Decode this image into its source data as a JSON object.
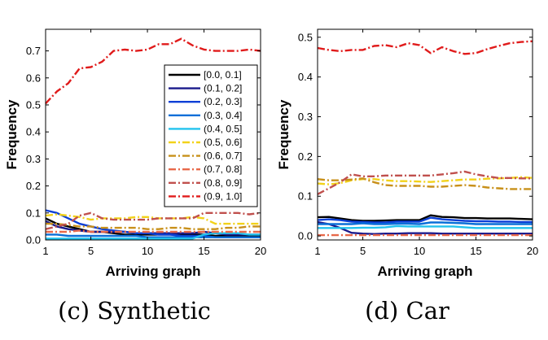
{
  "chart_data": [
    {
      "type": "line",
      "caption": "(c) Synthetic",
      "xlabel": "Arriving graph",
      "ylabel": "Frequency",
      "xlim": [
        1,
        20
      ],
      "ylim": [
        0,
        0.78
      ],
      "xticks": [
        1,
        5,
        10,
        15,
        20
      ],
      "yticks": [
        0,
        0.1,
        0.2,
        0.3,
        0.4,
        0.5,
        0.6,
        0.7
      ],
      "yticklabels": [
        "0.0",
        "0.1",
        "0.2",
        "0.3",
        "0.4",
        "0.5",
        "0.6",
        "0.7"
      ],
      "grid": false,
      "legend": "top-right",
      "x": [
        1,
        2,
        3,
        4,
        5,
        6,
        7,
        8,
        9,
        10,
        11,
        12,
        13,
        14,
        15,
        16,
        17,
        18,
        19,
        20
      ],
      "series": [
        {
          "name": "[0.0, 0.1]",
          "color": "#000000",
          "dash": "solid",
          "values": [
            0.08,
            0.06,
            0.05,
            0.04,
            0.03,
            0.03,
            0.025,
            0.02,
            0.02,
            0.02,
            0.02,
            0.02,
            0.02,
            0.02,
            0.02,
            0.015,
            0.015,
            0.015,
            0.015,
            0.015
          ]
        },
        {
          "name": "(0.1, 0.2]",
          "color": "#1a1a8c",
          "dash": "solid",
          "values": [
            0.07,
            0.05,
            0.04,
            0.035,
            0.03,
            0.03,
            0.03,
            0.03,
            0.025,
            0.025,
            0.025,
            0.025,
            0.025,
            0.025,
            0.03,
            0.025,
            0.02,
            0.02,
            0.02,
            0.02
          ]
        },
        {
          "name": "(0.2, 0.3]",
          "color": "#0b3fd6",
          "dash": "solid",
          "values": [
            0.11,
            0.1,
            0.08,
            0.06,
            0.05,
            0.04,
            0.035,
            0.03,
            0.025,
            0.025,
            0.02,
            0.02,
            0.015,
            0.015,
            0.015,
            0.01,
            0.01,
            0.01,
            0.01,
            0.01
          ]
        },
        {
          "name": "(0.3, 0.4]",
          "color": "#0a6fd8",
          "dash": "solid",
          "values": [
            0.02,
            0.02,
            0.015,
            0.015,
            0.015,
            0.015,
            0.015,
            0.015,
            0.015,
            0.01,
            0.01,
            0.01,
            0.01,
            0.01,
            0.01,
            0.01,
            0.01,
            0.01,
            0.01,
            0.01
          ]
        },
        {
          "name": "(0.4, 0.5]",
          "color": "#22c3ee",
          "dash": "solid",
          "values": [
            0.005,
            0.005,
            0.005,
            0.005,
            0.005,
            0.005,
            0.005,
            0.005,
            0.005,
            0.005,
            0.005,
            0.005,
            0.005,
            0.005,
            0.02,
            0.025,
            0.025,
            0.025,
            0.02,
            0.02
          ]
        },
        {
          "name": "(0.5, 0.6]",
          "color": "#f2d21a",
          "dash": "dashdot",
          "values": [
            0.09,
            0.095,
            0.09,
            0.085,
            0.075,
            0.08,
            0.08,
            0.08,
            0.085,
            0.085,
            0.08,
            0.08,
            0.08,
            0.085,
            0.08,
            0.06,
            0.06,
            0.06,
            0.06,
            0.06
          ]
        },
        {
          "name": "(0.6, 0.7]",
          "color": "#c8901a",
          "dash": "dashdot",
          "values": [
            0.06,
            0.06,
            0.055,
            0.05,
            0.05,
            0.045,
            0.045,
            0.045,
            0.045,
            0.04,
            0.04,
            0.045,
            0.045,
            0.04,
            0.04,
            0.04,
            0.045,
            0.045,
            0.05,
            0.05
          ]
        },
        {
          "name": "(0.7, 0.8]",
          "color": "#e8694a",
          "dash": "dashdot",
          "values": [
            0.03,
            0.03,
            0.03,
            0.035,
            0.03,
            0.03,
            0.03,
            0.03,
            0.03,
            0.03,
            0.03,
            0.03,
            0.03,
            0.03,
            0.03,
            0.03,
            0.03,
            0.03,
            0.03,
            0.03
          ]
        },
        {
          "name": "(0.8, 0.9]",
          "color": "#c0504d",
          "dash": "dashdot",
          "values": [
            0.04,
            0.05,
            0.06,
            0.09,
            0.1,
            0.08,
            0.075,
            0.075,
            0.075,
            0.075,
            0.08,
            0.08,
            0.08,
            0.08,
            0.1,
            0.1,
            0.1,
            0.1,
            0.095,
            0.1
          ]
        },
        {
          "name": "(0.9, 1.0]",
          "color": "#e01b1b",
          "dash": "dashdot",
          "values": [
            0.505,
            0.55,
            0.58,
            0.635,
            0.64,
            0.66,
            0.7,
            0.705,
            0.7,
            0.705,
            0.725,
            0.725,
            0.745,
            0.72,
            0.705,
            0.7,
            0.7,
            0.7,
            0.705,
            0.7
          ]
        }
      ]
    },
    {
      "type": "line",
      "caption": "(d) Car",
      "xlabel": "Arriving graph",
      "ylabel": "Frequency",
      "xlim": [
        1,
        20
      ],
      "ylim": [
        -0.01,
        0.52
      ],
      "xticks": [
        1,
        5,
        10,
        15,
        20
      ],
      "yticks": [
        0,
        0.1,
        0.2,
        0.3,
        0.4,
        0.5
      ],
      "yticklabels": [
        "0.0",
        "0.1",
        "0.2",
        "0.3",
        "0.4",
        "0.5"
      ],
      "grid": false,
      "legend": "none",
      "x": [
        1,
        2,
        3,
        4,
        5,
        6,
        7,
        8,
        9,
        10,
        11,
        12,
        13,
        14,
        15,
        16,
        17,
        18,
        19,
        20
      ],
      "series": [
        {
          "name": "[0.0, 0.1]",
          "color": "#000000",
          "dash": "solid",
          "values": [
            0.047,
            0.048,
            0.044,
            0.04,
            0.038,
            0.038,
            0.039,
            0.04,
            0.04,
            0.04,
            0.052,
            0.048,
            0.047,
            0.045,
            0.045,
            0.044,
            0.044,
            0.044,
            0.043,
            0.042
          ]
        },
        {
          "name": "(0.1, 0.2]",
          "color": "#1a1a8c",
          "dash": "solid",
          "values": [
            0.035,
            0.03,
            0.02,
            0.008,
            0.006,
            0.005,
            0.006,
            0.006,
            0.007,
            0.007,
            0.007,
            0.006,
            0.006,
            0.006,
            0.006,
            0.006,
            0.006,
            0.006,
            0.006,
            0.006
          ]
        },
        {
          "name": "(0.2, 0.3]",
          "color": "#0b3fd6",
          "dash": "solid",
          "values": [
            0.04,
            0.042,
            0.04,
            0.036,
            0.035,
            0.034,
            0.034,
            0.036,
            0.036,
            0.036,
            0.046,
            0.042,
            0.04,
            0.038,
            0.037,
            0.037,
            0.036,
            0.036,
            0.035,
            0.035
          ]
        },
        {
          "name": "(0.3, 0.4]",
          "color": "#0a6fd8",
          "dash": "solid",
          "values": [
            0.03,
            0.03,
            0.03,
            0.03,
            0.032,
            0.03,
            0.03,
            0.031,
            0.031,
            0.03,
            0.034,
            0.034,
            0.033,
            0.032,
            0.03,
            0.03,
            0.03,
            0.03,
            0.03,
            0.03
          ]
        },
        {
          "name": "(0.4, 0.5]",
          "color": "#22c3ee",
          "dash": "solid",
          "values": [
            0.02,
            0.02,
            0.02,
            0.02,
            0.021,
            0.021,
            0.022,
            0.025,
            0.024,
            0.024,
            0.024,
            0.024,
            0.024,
            0.022,
            0.02,
            0.02,
            0.02,
            0.02,
            0.02,
            0.02
          ]
        },
        {
          "name": "(0.5, 0.6]",
          "color": "#f2d21a",
          "dash": "dashdot",
          "values": [
            0.132,
            0.13,
            0.133,
            0.14,
            0.143,
            0.143,
            0.14,
            0.138,
            0.138,
            0.137,
            0.136,
            0.138,
            0.14,
            0.142,
            0.142,
            0.144,
            0.145,
            0.146,
            0.148,
            0.146
          ]
        },
        {
          "name": "(0.6, 0.7]",
          "color": "#c8901a",
          "dash": "dashdot",
          "values": [
            0.143,
            0.14,
            0.14,
            0.142,
            0.145,
            0.135,
            0.128,
            0.126,
            0.126,
            0.126,
            0.124,
            0.124,
            0.126,
            0.128,
            0.126,
            0.122,
            0.12,
            0.118,
            0.118,
            0.118
          ]
        },
        {
          "name": "(0.7, 0.8]",
          "color": "#e8694a",
          "dash": "dashdot",
          "values": [
            0.002,
            0.002,
            0.002,
            0.002,
            0.002,
            0.002,
            0.002,
            0.002,
            0.002,
            0.002,
            0.002,
            0.002,
            0.002,
            0.002,
            0.002,
            0.002,
            0.002,
            0.002,
            0.002,
            0.002
          ]
        },
        {
          "name": "(0.8, 0.9]",
          "color": "#c0504d",
          "dash": "dashdot",
          "values": [
            0.105,
            0.12,
            0.135,
            0.155,
            0.15,
            0.15,
            0.152,
            0.152,
            0.152,
            0.152,
            0.152,
            0.155,
            0.158,
            0.162,
            0.155,
            0.15,
            0.146,
            0.146,
            0.145,
            0.145
          ]
        },
        {
          "name": "(0.9, 1.0]",
          "color": "#e01b1b",
          "dash": "dashdot",
          "values": [
            0.473,
            0.468,
            0.465,
            0.468,
            0.468,
            0.478,
            0.48,
            0.475,
            0.485,
            0.48,
            0.46,
            0.475,
            0.465,
            0.458,
            0.46,
            0.47,
            0.478,
            0.485,
            0.488,
            0.49
          ]
        }
      ]
    }
  ]
}
